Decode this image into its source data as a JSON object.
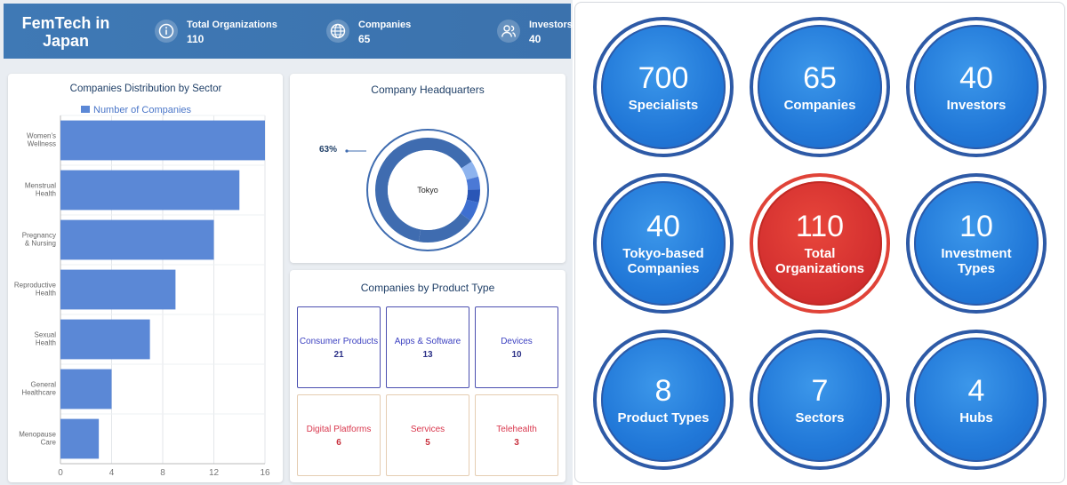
{
  "header": {
    "title": "FemTech in Japan",
    "stats": [
      {
        "icon": "info-icon",
        "label": "Total Organizations",
        "value": "110"
      },
      {
        "icon": "globe-icon",
        "label": "Companies",
        "value": "65"
      },
      {
        "icon": "users-icon",
        "label": "Investors",
        "value": "40"
      }
    ]
  },
  "sector_panel": {
    "title": "Companies Distribution by Sector",
    "chart_data": {
      "type": "bar",
      "orientation": "horizontal",
      "title": "Companies Distribution by Sector",
      "series": [
        {
          "name": "Number of Companies",
          "values": [
            16,
            14,
            12,
            9,
            7,
            4,
            3
          ]
        }
      ],
      "categories": [
        "Women's Wellness",
        "Menstrual Health",
        "Pregnancy & Nursing",
        "Reproductive Health",
        "Sexual Health",
        "General Healthcare",
        "Menopause Care"
      ],
      "category_lines": [
        [
          "Women's",
          "Wellness"
        ],
        [
          "Menstrual",
          "Health"
        ],
        [
          "Pregnancy",
          "& Nursing"
        ],
        [
          "Reproductive",
          "Health"
        ],
        [
          "Sexual",
          "Health"
        ],
        [
          "General",
          "Healthcare"
        ],
        [
          "Menopause",
          "Care"
        ]
      ],
      "xlim": [
        0,
        16
      ],
      "xticks": [
        0,
        4,
        8,
        12,
        16
      ],
      "legend_position": "top-left",
      "grid": true,
      "color": "#5b88d6"
    }
  },
  "hq_panel": {
    "title": "Company Headquarters",
    "center_label": "Tokyo",
    "percent_label": "63%",
    "chart_data": {
      "type": "pie",
      "variant": "donut",
      "slices": [
        {
          "label": "Tokyo",
          "value": 63
        },
        {
          "label": "",
          "value": 5
        },
        {
          "label": "",
          "value": 4
        },
        {
          "label": "",
          "value": 4
        },
        {
          "label": "",
          "value": 6
        },
        {
          "label": "",
          "value": 18
        }
      ],
      "colors": [
        "#3f6cb0",
        "#8db3ee",
        "#4b79d6",
        "#2a56b6",
        "#3e6fd0",
        "#3f6cb0"
      ]
    }
  },
  "product_panel": {
    "title": "Companies by Product Type",
    "cards": [
      {
        "label": "Consumer Products",
        "value": "21",
        "tone": "blue"
      },
      {
        "label": "Apps & Software",
        "value": "13",
        "tone": "blue"
      },
      {
        "label": "Devices",
        "value": "10",
        "tone": "blue"
      },
      {
        "label": "Digital Platforms",
        "value": "6",
        "tone": "red"
      },
      {
        "label": "Services",
        "value": "5",
        "tone": "red"
      },
      {
        "label": "Telehealth",
        "value": "3",
        "tone": "red"
      }
    ]
  },
  "metrics": [
    {
      "value": "700",
      "label": "Specialists",
      "tone": "blue"
    },
    {
      "value": "65",
      "label": "Companies",
      "tone": "blue"
    },
    {
      "value": "40",
      "label": "Investors",
      "tone": "blue"
    },
    {
      "value": "40",
      "label": "Tokyo-based Companies",
      "tone": "blue"
    },
    {
      "value": "110",
      "label": "Total Organizations",
      "tone": "red"
    },
    {
      "value": "10",
      "label": "Investment Types",
      "tone": "blue"
    },
    {
      "value": "8",
      "label": "Product Types",
      "tone": "blue"
    },
    {
      "value": "7",
      "label": "Sectors",
      "tone": "blue"
    },
    {
      "value": "4",
      "label": "Hubs",
      "tone": "blue"
    }
  ],
  "colors": {
    "header": "#3f79b5",
    "bar": "#5b88d6",
    "bubble_blue": "#2178d8",
    "bubble_red": "#d32f2f"
  }
}
